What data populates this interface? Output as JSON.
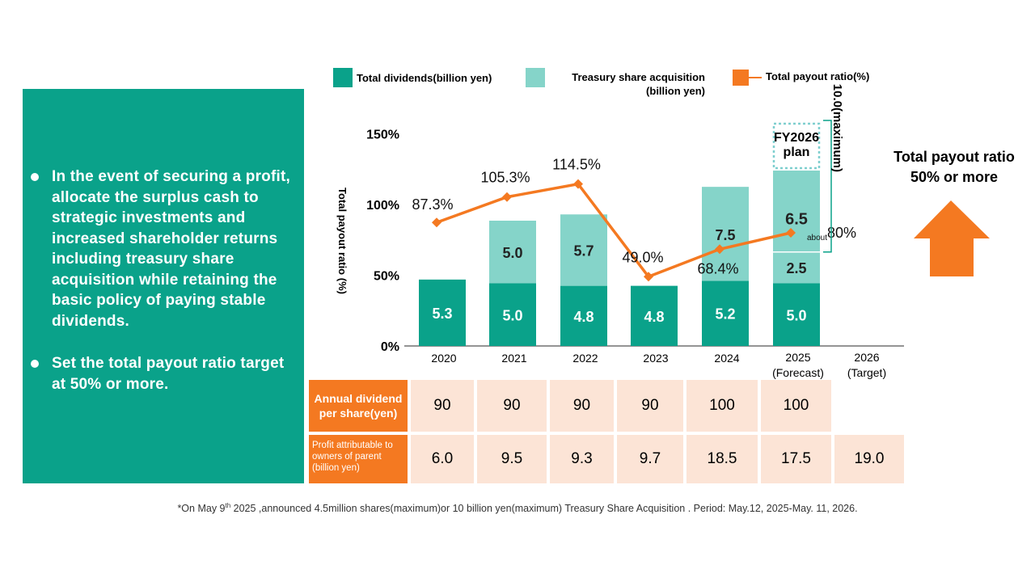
{
  "left_panel": {
    "bullets": [
      "In the event of securing a profit, allocate the surplus cash to strategic investments and increased shareholder returns including treasury share acquisition while retaining the basic policy of paying stable dividends.",
      "Set the total payout ratio target at 50% or more."
    ]
  },
  "legend": {
    "dividends": "Total dividends(billion yen)",
    "treasury_line1": "Treasury share acquisition",
    "treasury_line2": "(billion yen)",
    "payout": "Total payout ratio(%)"
  },
  "target": {
    "line1": "Total payout ratio",
    "line2": "50% or more"
  },
  "chart_data": {
    "type": "bar",
    "stacked": true,
    "title": "",
    "ylabel": "Total payout ratio (%)",
    "ylim_percent": [
      0,
      150
    ],
    "y_ticks": [
      "0%",
      "50%",
      "100%",
      "150%"
    ],
    "y_tick_values": [
      0,
      50,
      100,
      150
    ],
    "categories": [
      "2020",
      "2021",
      "2022",
      "2023",
      "2024",
      "2025",
      "2026"
    ],
    "category_subs": [
      "",
      "",
      "",
      "",
      "",
      "(Forecast)",
      "(Target)"
    ],
    "series": [
      {
        "name": "Total dividends(billion yen)",
        "color": "#0aa28a",
        "values": [
          5.3,
          5.0,
          4.8,
          4.8,
          5.2,
          5.0,
          null
        ],
        "labels": [
          "5.3",
          "5.0",
          "4.8",
          "4.8",
          "5.2",
          "5.0",
          ""
        ]
      },
      {
        "name": "Treasury share acquisition (billion yen)",
        "color": "#85d4c9",
        "values": [
          0,
          5.0,
          5.7,
          0,
          7.5,
          2.5,
          null
        ],
        "labels": [
          "",
          "5.0",
          "5.7",
          "",
          "7.5",
          "2.5",
          ""
        ]
      }
    ],
    "fy2026_plan": {
      "label_line1": "FY2026",
      "label_line2": "plan",
      "value": 6.5,
      "value_label": "6.5",
      "color": "#85d4c9"
    },
    "brace_label": "10.0(maximum)",
    "payout_ratio": {
      "name": "Total payout ratio(%)",
      "color": "#f47921",
      "values": [
        87.3,
        105.3,
        114.5,
        49.0,
        68.4,
        80
      ],
      "labels": [
        "87.3%",
        "105.3%",
        "114.5%",
        "49.0%",
        "68.4%",
        "80%"
      ],
      "label_prefix_2025": "about"
    }
  },
  "table": {
    "row1_header": "Annual dividend per share(yen)",
    "row1_values": [
      "90",
      "90",
      "90",
      "90",
      "100",
      "100"
    ],
    "row2_header": "Profit attributable to owners of parent (billion yen)",
    "row2_values": [
      "6.0",
      "9.5",
      "9.3",
      "9.7",
      "18.5",
      "17.5",
      "19.0"
    ]
  },
  "footnote": {
    "pre": "*On May 9",
    "sup": "th",
    "post": " 2025 ,announced 4.5million shares(maximum)or 10 billion yen(maximum) Treasury Share Acquisition . Period: May.12, 2025-May. 11, 2026."
  },
  "colors": {
    "teal": "#0aa28a",
    "light_teal": "#85d4c9",
    "orange": "#f47921",
    "peach": "#fce4d6"
  }
}
